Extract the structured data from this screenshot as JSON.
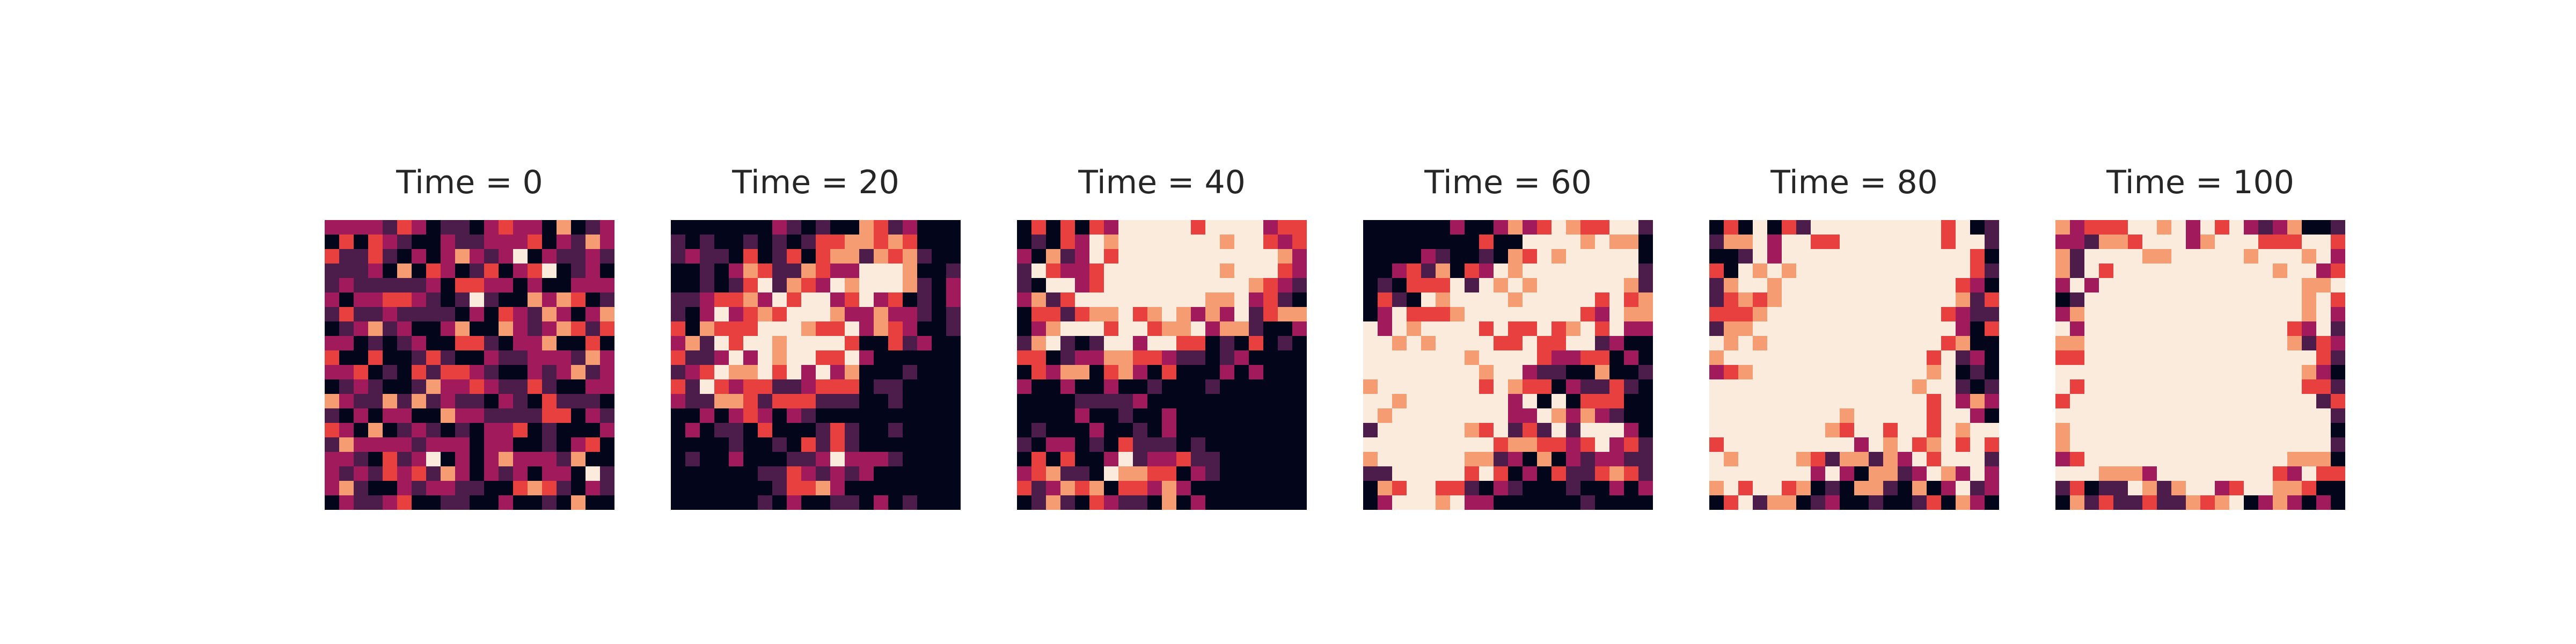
{
  "chart_data": [
    {
      "type": "heatmap",
      "title": "Time = 0",
      "seed": 11,
      "p": [
        0.22,
        0.3,
        0.26,
        0.14,
        0.06,
        0.02
      ],
      "scale": 1.2,
      "thresh": 0.0,
      "bias": 0.45,
      "blobs": []
    },
    {
      "type": "heatmap",
      "title": "Time = 20",
      "seed": 23,
      "p": [
        0.24,
        0.22,
        0.24,
        0.16,
        0.1,
        0.04
      ],
      "scale": 2.4,
      "thresh": 0.42,
      "bias": 0.0,
      "blobs": [
        [
          0.3,
          0.35,
          0.22,
          0.9
        ],
        [
          0.75,
          0.18,
          0.18,
          1.0
        ],
        [
          0.55,
          0.88,
          0.14,
          0.9
        ],
        [
          0.15,
          0.6,
          0.15,
          0.6
        ],
        [
          0.5,
          0.45,
          0.15,
          0.7
        ]
      ]
    },
    {
      "type": "heatmap",
      "title": "Time = 40",
      "seed": 37,
      "p": [
        0.3,
        0.2,
        0.18,
        0.14,
        0.1,
        0.08
      ],
      "scale": 2.8,
      "thresh": 0.42,
      "bias": 0.0,
      "blobs": [
        [
          0.8,
          0.15,
          0.2,
          1.3
        ],
        [
          0.25,
          0.3,
          0.25,
          1.0
        ],
        [
          0.45,
          0.9,
          0.12,
          1.0
        ],
        [
          0.15,
          0.92,
          0.1,
          0.8
        ],
        [
          0.45,
          0.15,
          0.15,
          0.8
        ]
      ]
    },
    {
      "type": "heatmap",
      "title": "Time = 60",
      "seed": 41,
      "p": [
        0.18,
        0.18,
        0.2,
        0.18,
        0.14,
        0.12
      ],
      "scale": 3.0,
      "thresh": 0.4,
      "bias": 0.0,
      "blobs": [
        [
          0.18,
          0.5,
          0.18,
          1.4
        ],
        [
          0.2,
          0.85,
          0.15,
          1.3
        ],
        [
          0.8,
          0.15,
          0.2,
          1.1
        ],
        [
          0.55,
          0.3,
          0.2,
          0.9
        ],
        [
          0.85,
          0.75,
          0.12,
          1.0
        ],
        [
          0.5,
          0.7,
          0.15,
          0.7
        ]
      ]
    },
    {
      "type": "heatmap",
      "title": "Time = 80",
      "seed": 53,
      "p": [
        0.12,
        0.18,
        0.2,
        0.18,
        0.16,
        0.16
      ],
      "scale": 3.2,
      "thresh": 0.38,
      "bias": 0.0,
      "blobs": [
        [
          0.4,
          0.35,
          0.3,
          1.6
        ],
        [
          0.15,
          0.8,
          0.2,
          1.1
        ],
        [
          0.85,
          0.8,
          0.15,
          1.0
        ],
        [
          0.75,
          0.1,
          0.18,
          0.9
        ],
        [
          0.6,
          0.45,
          0.15,
          0.9
        ]
      ]
    },
    {
      "type": "heatmap",
      "title": "Time = 100",
      "seed": 67,
      "p": [
        0.12,
        0.16,
        0.18,
        0.18,
        0.18,
        0.18
      ],
      "scale": 3.0,
      "thresh": 0.38,
      "bias": 0.0,
      "blobs": [
        [
          0.35,
          0.25,
          0.3,
          1.4
        ],
        [
          0.7,
          0.75,
          0.18,
          1.5
        ],
        [
          0.2,
          0.75,
          0.2,
          1.2
        ],
        [
          0.55,
          0.5,
          0.2,
          0.9
        ],
        [
          0.85,
          0.2,
          0.15,
          0.9
        ]
      ]
    }
  ],
  "colormap": [
    "#03051a",
    "#4c1d4b",
    "#a11a5b",
    "#e83f3f",
    "#f69c73",
    "#faebdd"
  ]
}
